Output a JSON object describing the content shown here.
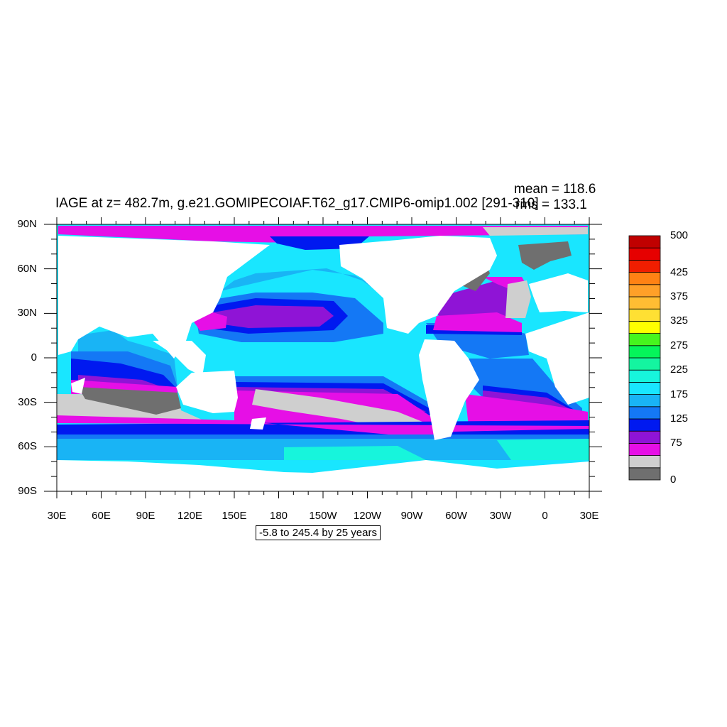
{
  "title": "IAGE at z= 482.7m, g.e21.GOMIPECOIAF.T62_g17.CMIP6-omip1.002 [291-310]",
  "stats": {
    "mean": "mean = 118.6",
    "rms": "rms = 133.1"
  },
  "range_label": "-5.8 to 245.4 by 25 years",
  "axes": {
    "lat_labels": [
      "90N",
      "60N",
      "30N",
      "0",
      "30S",
      "60S",
      "90S"
    ],
    "lon_labels": [
      "30E",
      "60E",
      "90E",
      "120E",
      "150E",
      "180",
      "150W",
      "120W",
      "90W",
      "60W",
      "30W",
      "0",
      "30E"
    ]
  },
  "colorbar": {
    "colors": [
      "#6f6f6f",
      "#cfcfcf",
      "#e60fe6",
      "#8f14d6",
      "#0019f0",
      "#1478f5",
      "#19b4f5",
      "#19e6ff",
      "#17f5dc",
      "#14f5a0",
      "#05f55a",
      "#46f51e",
      "#ffff00",
      "#ffe033",
      "#ffbd33",
      "#ffa028",
      "#ff8214",
      "#f01e00",
      "#e60000",
      "#c00000"
    ],
    "labels": [
      {
        "text": "0",
        "index": 0
      },
      {
        "text": "75",
        "index": 3
      },
      {
        "text": "125",
        "index": 5
      },
      {
        "text": "175",
        "index": 7
      },
      {
        "text": "225",
        "index": 9
      },
      {
        "text": "275",
        "index": 11
      },
      {
        "text": "325",
        "index": 13
      },
      {
        "text": "375",
        "index": 15
      },
      {
        "text": "425",
        "index": 17
      },
      {
        "text": "500",
        "index": 20
      }
    ]
  },
  "map_colors": {
    "land": "#ffffff",
    "ocean_base": "#19e6ff"
  }
}
